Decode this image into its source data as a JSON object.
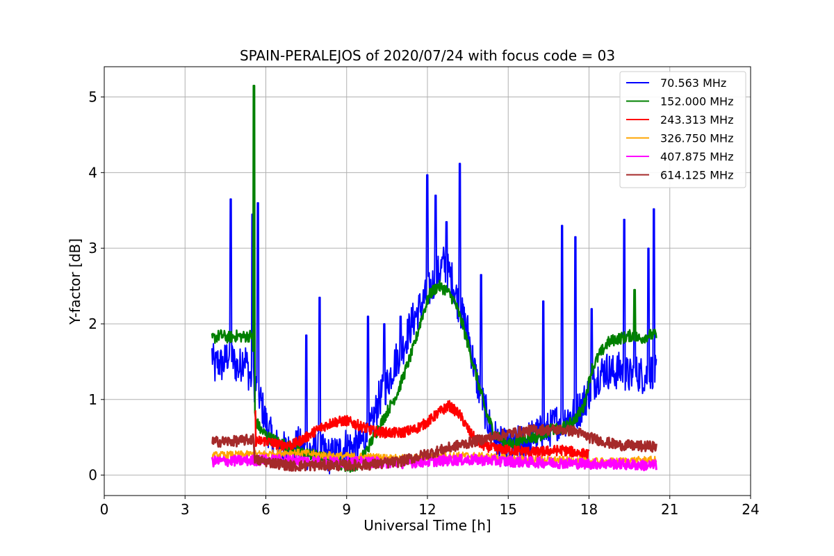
{
  "chart_data": {
    "type": "line",
    "title": "SPAIN-PERALEJOS of 2020/07/24 with focus code = 03",
    "xlabel": "Universal Time [h]",
    "ylabel": "Y-factor [dB]",
    "xlim": [
      0,
      24
    ],
    "ylim": [
      -0.27,
      5.4
    ],
    "xticks": [
      0,
      3,
      6,
      9,
      12,
      15,
      18,
      21,
      24
    ],
    "yticks": [
      0,
      1,
      2,
      3,
      4,
      5
    ],
    "grid": true,
    "legend_position": "top-right",
    "series": [
      {
        "name": " 70.563 MHz",
        "color": "#0000ff",
        "x": [
          4.0,
          4.1,
          4.2,
          4.4,
          4.6,
          4.8,
          5.0,
          5.2,
          5.4,
          5.6,
          5.8,
          6.0,
          6.3,
          6.6,
          6.9,
          7.2,
          7.5,
          7.8,
          8.1,
          8.4,
          8.7,
          9.0,
          9.3,
          9.6,
          9.9,
          10.2,
          10.5,
          10.8,
          11.1,
          11.4,
          11.7,
          12.0,
          12.3,
          12.6,
          12.9,
          13.2,
          13.5,
          13.8,
          14.1,
          14.4,
          14.7,
          15.0,
          15.3,
          15.6,
          15.9,
          16.2,
          16.5,
          16.8,
          17.1,
          17.4,
          17.7,
          18.0,
          18.3,
          18.6,
          18.9,
          19.2,
          19.5,
          19.8,
          20.1,
          20.4,
          20.5
        ],
        "y": [
          1.6,
          1.4,
          1.5,
          1.45,
          1.6,
          1.5,
          1.4,
          1.6,
          1.3,
          1.2,
          1.0,
          0.7,
          0.4,
          0.35,
          0.3,
          0.4,
          0.3,
          0.35,
          0.3,
          0.25,
          0.3,
          0.4,
          0.35,
          0.45,
          0.6,
          1.0,
          1.2,
          1.5,
          1.7,
          2.0,
          2.2,
          2.4,
          2.6,
          2.8,
          2.6,
          2.2,
          1.9,
          1.3,
          0.9,
          0.55,
          0.4,
          0.35,
          0.4,
          0.45,
          0.5,
          0.55,
          0.6,
          0.7,
          0.75,
          0.8,
          0.9,
          1.1,
          1.3,
          1.4,
          1.35,
          1.4,
          1.3,
          1.35,
          1.3,
          1.4,
          1.3
        ],
        "spikes": [
          [
            4.7,
            3.65
          ],
          [
            5.5,
            3.45
          ],
          [
            5.7,
            3.6
          ],
          [
            7.5,
            1.85
          ],
          [
            8.0,
            2.35
          ],
          [
            9.8,
            2.1
          ],
          [
            10.4,
            2.0
          ],
          [
            11.0,
            2.1
          ],
          [
            12.0,
            3.97
          ],
          [
            12.3,
            3.7
          ],
          [
            12.7,
            3.35
          ],
          [
            13.2,
            4.12
          ],
          [
            14.0,
            2.65
          ],
          [
            16.3,
            2.3
          ],
          [
            17.0,
            3.3
          ],
          [
            17.5,
            3.15
          ],
          [
            18.1,
            2.2
          ],
          [
            19.3,
            3.38
          ],
          [
            19.7,
            2.3
          ],
          [
            20.2,
            3.0
          ],
          [
            20.4,
            3.52
          ]
        ]
      },
      {
        "name": "152.000 MHz",
        "color": "#008000",
        "x": [
          4.0,
          4.3,
          4.6,
          4.9,
          5.2,
          5.5,
          5.6,
          5.8,
          6.1,
          6.4,
          6.7,
          7.0,
          7.3,
          7.6,
          7.9,
          8.2,
          8.5,
          8.8,
          9.1,
          9.4,
          9.7,
          10.0,
          10.3,
          10.6,
          10.9,
          11.2,
          11.5,
          11.8,
          12.1,
          12.4,
          12.7,
          13.0,
          13.3,
          13.6,
          13.9,
          14.2,
          14.5,
          14.8,
          15.1,
          15.4,
          15.7,
          16.0,
          16.3,
          16.6,
          16.9,
          17.2,
          17.5,
          17.8,
          18.1,
          18.4,
          18.7,
          19.0,
          19.3,
          19.6,
          19.9,
          20.2,
          20.5
        ],
        "y": [
          1.8,
          1.85,
          1.82,
          1.84,
          1.83,
          1.85,
          0.75,
          0.6,
          0.5,
          0.45,
          0.4,
          0.35,
          0.3,
          0.28,
          0.25,
          0.22,
          0.2,
          0.15,
          0.1,
          0.15,
          0.3,
          0.5,
          0.7,
          0.9,
          1.1,
          1.4,
          1.7,
          2.1,
          2.4,
          2.5,
          2.45,
          2.3,
          2.0,
          1.6,
          1.2,
          0.8,
          0.55,
          0.45,
          0.4,
          0.45,
          0.5,
          0.5,
          0.55,
          0.6,
          0.6,
          0.65,
          0.75,
          0.9,
          1.4,
          1.6,
          1.75,
          1.8,
          1.82,
          1.85,
          1.8,
          1.85,
          1.85
        ],
        "spikes": [
          [
            5.55,
            5.15
          ],
          [
            19.7,
            2.45
          ]
        ]
      },
      {
        "name": "243.313 MHz",
        "color": "#ff0000",
        "x": [
          5.6,
          6.0,
          6.5,
          7.0,
          7.5,
          8.0,
          8.5,
          9.0,
          9.5,
          10.0,
          10.5,
          11.0,
          11.5,
          12.0,
          12.4,
          12.8,
          13.2,
          13.6,
          14.0,
          14.5,
          15.0,
          15.5,
          16.0,
          16.5,
          17.0,
          17.5,
          18.0
        ],
        "y": [
          0.45,
          0.45,
          0.4,
          0.4,
          0.5,
          0.62,
          0.7,
          0.72,
          0.65,
          0.58,
          0.56,
          0.56,
          0.6,
          0.7,
          0.82,
          0.92,
          0.8,
          0.55,
          0.4,
          0.35,
          0.33,
          0.32,
          0.3,
          0.32,
          0.33,
          0.3,
          0.27
        ],
        "spikes": [
          [
            5.6,
            0.85
          ]
        ]
      },
      {
        "name": "326.750 MHz",
        "color": "#ffa500",
        "x": [
          4.0,
          5.0,
          6.0,
          7.0,
          8.0,
          9.0,
          10.0,
          11.0,
          12.0,
          13.0,
          14.0,
          15.0,
          16.0,
          17.0,
          18.0,
          19.0,
          20.0,
          20.5
        ],
        "y": [
          0.26,
          0.27,
          0.28,
          0.3,
          0.27,
          0.25,
          0.24,
          0.22,
          0.24,
          0.26,
          0.25,
          0.22,
          0.2,
          0.2,
          0.18,
          0.18,
          0.2,
          0.2
        ],
        "spikes": []
      },
      {
        "name": "407.875 MHz",
        "color": "#ff00ff",
        "x": [
          4.0,
          5.0,
          6.0,
          7.0,
          8.0,
          9.0,
          10.0,
          11.0,
          12.0,
          13.0,
          14.0,
          15.0,
          16.0,
          17.0,
          18.0,
          19.0,
          20.0,
          20.5
        ],
        "y": [
          0.18,
          0.19,
          0.2,
          0.2,
          0.18,
          0.17,
          0.17,
          0.16,
          0.18,
          0.2,
          0.2,
          0.18,
          0.17,
          0.16,
          0.15,
          0.15,
          0.13,
          0.13
        ],
        "spikes": []
      },
      {
        "name": "614.125 MHz",
        "color": "#a52a2a",
        "x": [
          4.0,
          5.0,
          5.55,
          5.6,
          6.0,
          7.0,
          8.0,
          9.0,
          10.0,
          11.0,
          12.0,
          13.0,
          14.0,
          15.0,
          16.0,
          17.0,
          17.5,
          18.0,
          19.0,
          20.0,
          20.5
        ],
        "y": [
          0.44,
          0.45,
          0.48,
          0.2,
          0.18,
          0.12,
          0.13,
          0.13,
          0.14,
          0.18,
          0.28,
          0.38,
          0.47,
          0.55,
          0.6,
          0.6,
          0.58,
          0.5,
          0.4,
          0.38,
          0.38
        ],
        "spikes": []
      }
    ]
  }
}
